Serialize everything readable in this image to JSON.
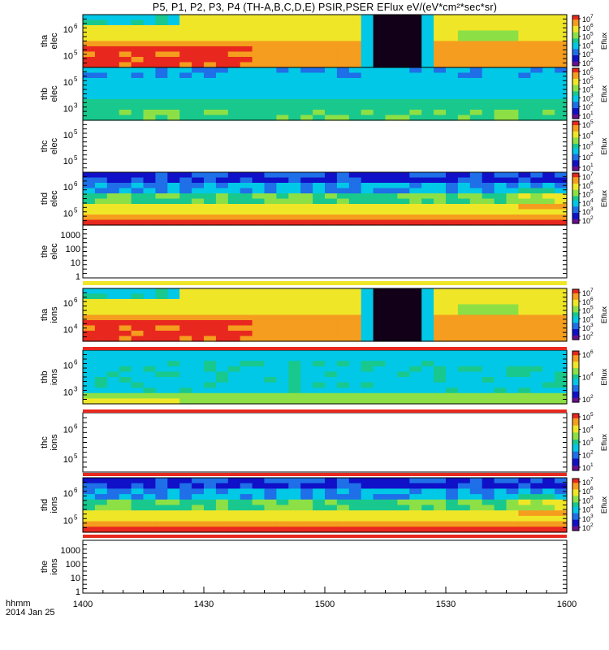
{
  "title": "P5, P1, P2, P3, P4 (TH-A,B,C,D,E) PSIR,PSER EFlux eV/(eV*cm²*sec*sr)",
  "footer": {
    "time_label": "hhmm",
    "date_label": "2014 Jan 25"
  },
  "colorbar_label": "Eflux",
  "chart_data": {
    "type": "heatmap",
    "x_axis": {
      "ticks": [
        "1400",
        "1430",
        "1500",
        "1530",
        "1600"
      ],
      "range_hhmm": [
        "1400",
        "1600"
      ]
    },
    "panels": [
      {
        "label": [
          "tha",
          "elec"
        ],
        "y_ticks": [
          {
            "label": "10",
            "exp": "6"
          },
          {
            "label": "10",
            "exp": "5"
          }
        ],
        "content": "spectrogram",
        "pattern": "gap",
        "colorbar": [
          "10^7",
          "10^6",
          "10^5",
          "10^4",
          "10^3",
          "10^2"
        ]
      },
      {
        "label": [
          "thb",
          "elec"
        ],
        "y_ticks": [
          {
            "label": "10",
            "exp": "5"
          },
          {
            "label": "10",
            "exp": "3"
          }
        ],
        "content": "spectrogram",
        "pattern": "cyan",
        "colorbar": [
          "10^6",
          "10^5",
          "10^4",
          "10^3",
          "10^2",
          "10^1"
        ]
      },
      {
        "label": [
          "thc",
          "elec"
        ],
        "y_ticks": [
          {
            "label": "10",
            "exp": "5"
          },
          {
            "label": "10",
            "exp": "5"
          }
        ],
        "content": "empty",
        "pattern": "none",
        "colorbar": [
          "10^5",
          "10^4",
          "10^3",
          "10^2",
          "10^1"
        ]
      },
      {
        "label": [
          "thd",
          "elec"
        ],
        "y_ticks": [
          {
            "label": "10",
            "exp": "6"
          },
          {
            "label": "10",
            "exp": "5"
          }
        ],
        "content": "spectrogram",
        "pattern": "blue-top",
        "colorbar": [
          "10^7",
          "10^6",
          "10^5",
          "10^4",
          "10^3",
          "10^2"
        ]
      },
      {
        "label": [
          "the",
          "elec"
        ],
        "y_ticks": [
          {
            "label": "1000"
          },
          {
            "label": "100"
          },
          {
            "label": "10"
          },
          {
            "label": "1"
          }
        ],
        "content": "empty",
        "pattern": "none",
        "colorbar": []
      },
      {
        "label": [
          "tha",
          "ions"
        ],
        "y_ticks": [
          {
            "label": "10",
            "exp": "6"
          },
          {
            "label": "10",
            "exp": "4"
          }
        ],
        "content": "spectrogram",
        "pattern": "gap",
        "colorbar": [
          "10^7",
          "10^6",
          "10^5",
          "10^4",
          "10^3",
          "10^2"
        ]
      },
      {
        "label": [
          "thb",
          "ions"
        ],
        "y_ticks": [
          {
            "label": "10",
            "exp": "6"
          },
          {
            "label": "10",
            "exp": "3"
          }
        ],
        "content": "spectrogram",
        "pattern": "cyan-ions",
        "colorbar": [
          "10^6",
          "10^4",
          "10^2"
        ]
      },
      {
        "label": [
          "thc",
          "ions"
        ],
        "y_ticks": [
          {
            "label": "10",
            "exp": "6"
          },
          {
            "label": "10",
            "exp": "5"
          }
        ],
        "content": "empty",
        "pattern": "none",
        "colorbar": [
          "10^5",
          "10^4",
          "10^3",
          "10^2",
          "10^1"
        ]
      },
      {
        "label": [
          "thd",
          "ions"
        ],
        "y_ticks": [
          {
            "label": "10",
            "exp": "6"
          },
          {
            "label": "10",
            "exp": "5"
          }
        ],
        "content": "spectrogram",
        "pattern": "blue-top",
        "colorbar": [
          "10^7",
          "10^6",
          "10^5",
          "10^4",
          "10^3",
          "10^2"
        ]
      },
      {
        "label": [
          "the",
          "ions"
        ],
        "y_ticks": [
          {
            "label": "1000"
          },
          {
            "label": "100"
          },
          {
            "label": "10"
          },
          {
            "label": "1"
          }
        ],
        "content": "empty",
        "pattern": "none",
        "colorbar": []
      }
    ],
    "colormap": [
      "#6a0f8f",
      "#1010c8",
      "#1e6fe8",
      "#00c8e6",
      "#19c88c",
      "#8ce046",
      "#f0e628",
      "#f59d1e",
      "#e8281e"
    ],
    "grid": false
  }
}
